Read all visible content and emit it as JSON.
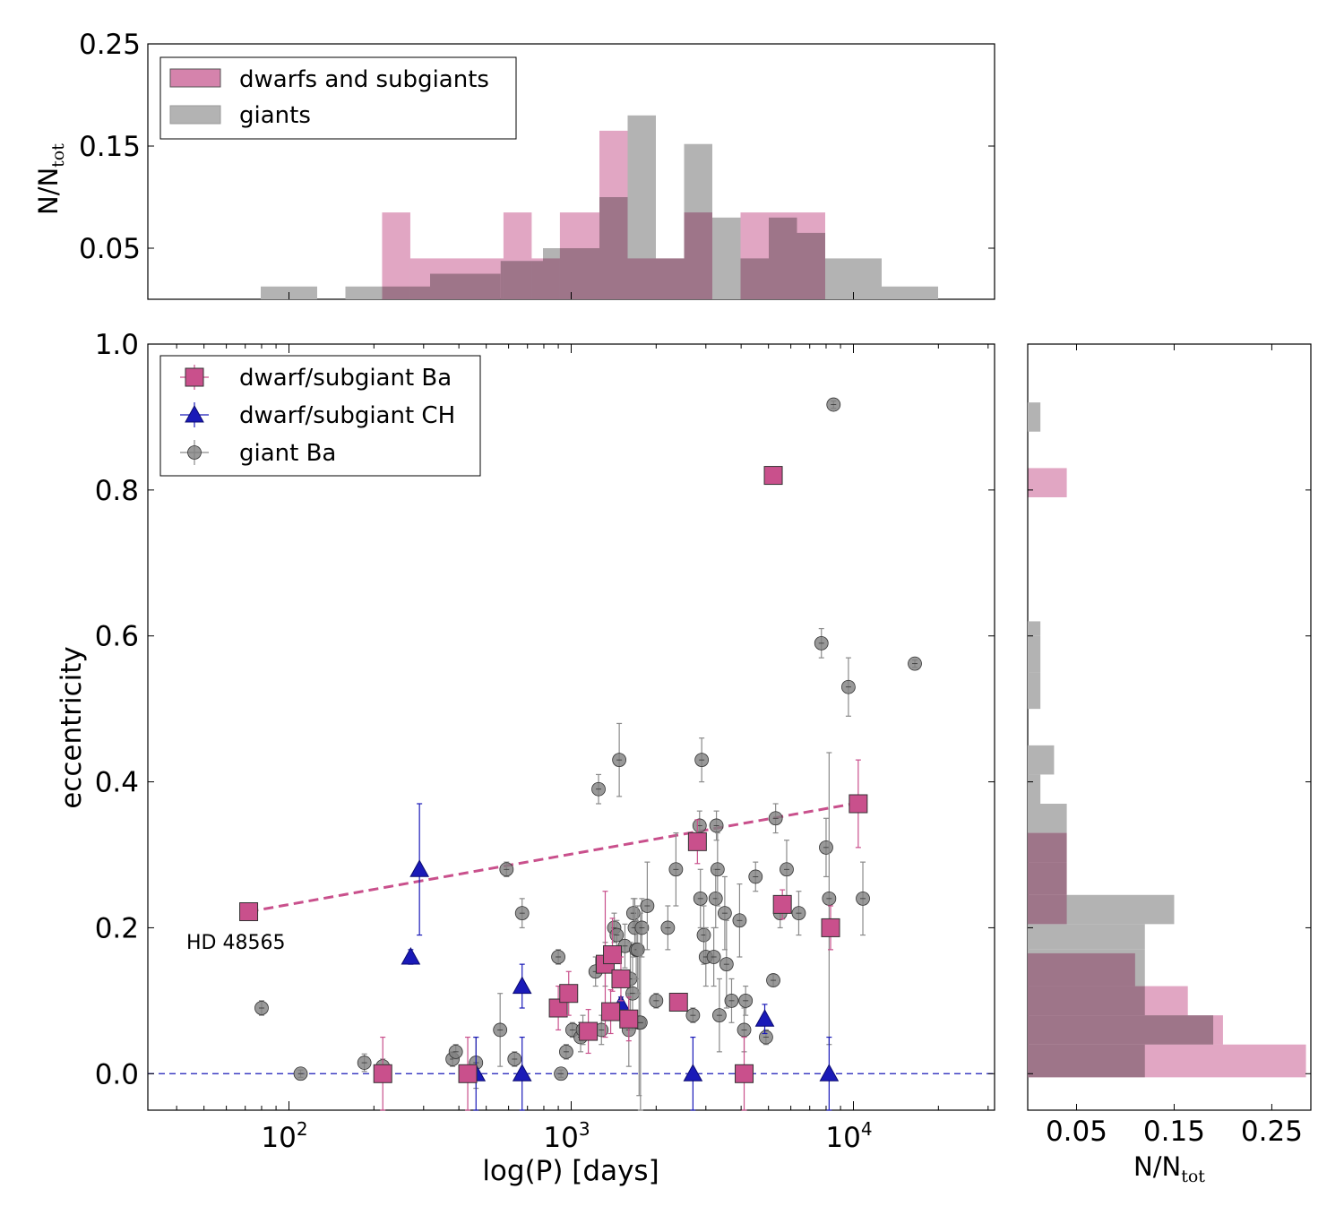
{
  "chart_data": [
    {
      "id": "top_hist",
      "type": "bar",
      "title": "",
      "ylabel_main": "N/N",
      "ylabel_sub": "tot",
      "ylim": [
        0,
        0.25
      ],
      "xlim_log10": [
        1.5,
        4.5
      ],
      "yticks": [
        0.05,
        0.15,
        0.25
      ],
      "ytick_labels": [
        "0.05",
        "0.15",
        "0.25"
      ],
      "legend": {
        "placement": "top-left",
        "entries": [
          {
            "label": "dwarfs and subgiants",
            "color": "#d583ac"
          },
          {
            "label": "giants",
            "color": "#b3b3b3"
          }
        ]
      },
      "series": [
        {
          "name": "giants",
          "color": "#b3b3b3",
          "bins": [
            [
              1.9,
              2.0,
              0.0125
            ],
            [
              2.0,
              2.1,
              0.0125
            ],
            [
              2.2,
              2.33,
              0.0125
            ],
            [
              2.33,
              2.5,
              0.0125
            ],
            [
              2.5,
              2.75,
              0.025
            ],
            [
              2.75,
              2.9,
              0.0375
            ],
            [
              2.9,
              3.1,
              0.05
            ],
            [
              3.1,
              3.2,
              0.1
            ],
            [
              3.2,
              3.3,
              0.18
            ],
            [
              3.3,
              3.4,
              0.04
            ],
            [
              3.4,
              3.5,
              0.152
            ],
            [
              3.5,
              3.6,
              0.08
            ],
            [
              3.6,
              3.7,
              0.04
            ],
            [
              3.7,
              3.8,
              0.08
            ],
            [
              3.8,
              3.9,
              0.065
            ],
            [
              3.9,
              4.0,
              0.04
            ],
            [
              4.0,
              4.1,
              0.04
            ],
            [
              4.1,
              4.3,
              0.0125
            ]
          ]
        },
        {
          "name": "dwarfs and subgiants",
          "color": "#d583ac",
          "bins": [
            [
              2.33,
              2.43,
              0.085
            ],
            [
              2.43,
              2.76,
              0.04
            ],
            [
              2.76,
              2.86,
              0.085
            ],
            [
              2.86,
              2.96,
              0.04
            ],
            [
              2.96,
              3.1,
              0.085
            ],
            [
              3.1,
              3.2,
              0.165
            ],
            [
              3.2,
              3.3,
              0.04
            ],
            [
              3.3,
              3.4,
              0.04
            ],
            [
              3.4,
              3.5,
              0.085
            ],
            [
              3.5,
              3.6,
              0.0
            ],
            [
              3.6,
              3.9,
              0.085
            ]
          ]
        }
      ]
    },
    {
      "id": "scatter",
      "type": "scatter",
      "xlabel": "log(P) [days]",
      "ylabel": "eccentricity",
      "xscale": "log",
      "xlim_log10": [
        1.5,
        4.5
      ],
      "ylim": [
        -0.05,
        1.0
      ],
      "yticks": [
        0.0,
        0.2,
        0.4,
        0.6,
        0.8,
        1.0
      ],
      "ytick_labels": [
        "0.0",
        "0.2",
        "0.4",
        "0.6",
        "0.8",
        "1.0"
      ],
      "xticks_log10": [
        2,
        3,
        4
      ],
      "xtick_base": "10",
      "xtick_exponents": [
        "2",
        "3",
        "4"
      ],
      "legend": {
        "placement": "top-left",
        "entries": [
          {
            "label": "dwarf/subgiant Ba",
            "color": "#c9508c",
            "marker": "square"
          },
          {
            "label": "dwarf/subgiant CH",
            "color": "#1a1ab8",
            "marker": "triangle"
          },
          {
            "label": "giant Ba",
            "color": "#7f7f7f",
            "marker": "circle"
          }
        ]
      },
      "annotation": {
        "text": "HD 48565",
        "color": "#c9508c"
      },
      "zero_line": {
        "y": 0.0,
        "color": "#1a1ab8",
        "style": "dashed"
      },
      "trend_line": {
        "x": [
          72,
          10000
        ],
        "y": [
          0.222,
          0.37
        ],
        "color": "#c9508c",
        "style": "dashed"
      },
      "series": [
        {
          "name": "giant Ba",
          "marker": "circle",
          "color": "#7f7f7f",
          "points": [
            [
              80,
              0.09,
              0.01
            ],
            [
              110,
              0.0,
              0.005
            ],
            [
              185,
              0.015,
              0.012
            ],
            [
              215,
              0.01,
              0.01
            ],
            [
              380,
              0.02,
              0.01
            ],
            [
              390,
              0.03,
              0.01
            ],
            [
              460,
              0.015,
              0.035
            ],
            [
              560,
              0.06,
              0.05
            ],
            [
              590,
              0.28,
              0.01
            ],
            [
              630,
              0.02,
              0.01
            ],
            [
              670,
              0.22,
              0.02
            ],
            [
              900,
              0.16,
              0.01
            ],
            [
              920,
              0.0,
              0.005
            ],
            [
              960,
              0.03,
              0.01
            ],
            [
              1010,
              0.06,
              0.01
            ],
            [
              1080,
              0.05,
              0.02
            ],
            [
              1100,
              0.06,
              0.02
            ],
            [
              1220,
              0.14,
              0.02
            ],
            [
              1250,
              0.39,
              0.02
            ],
            [
              1280,
              0.06,
              0.02
            ],
            [
              1320,
              0.15,
              0.03
            ],
            [
              1420,
              0.2,
              0.02
            ],
            [
              1450,
              0.19,
              0.02
            ],
            [
              1480,
              0.43,
              0.05
            ],
            [
              1550,
              0.175,
              0.03
            ],
            [
              1600,
              0.06,
              0.05
            ],
            [
              1620,
              0.13,
              0.05
            ],
            [
              1650,
              0.11,
              0.05
            ],
            [
              1660,
              0.22,
              0.02
            ],
            [
              1680,
              0.2,
              0.04
            ],
            [
              1700,
              0.17,
              0.04
            ],
            [
              1720,
              0.17,
              0.06
            ],
            [
              1740,
              0.07,
              0.1
            ],
            [
              1760,
              0.07,
              0.15
            ],
            [
              1780,
              0.2,
              0.04
            ],
            [
              1860,
              0.23,
              0.06
            ],
            [
              2000,
              0.1,
              0.01
            ],
            [
              2200,
              0.2,
              0.03
            ],
            [
              2350,
              0.28,
              0.05
            ],
            [
              2700,
              0.08,
              0.01
            ],
            [
              2850,
              0.34,
              0.02
            ],
            [
              2870,
              0.24,
              0.04
            ],
            [
              2900,
              0.43,
              0.03
            ],
            [
              2950,
              0.19,
              0.04
            ],
            [
              3000,
              0.16,
              0.04
            ],
            [
              3200,
              0.16,
              0.04
            ],
            [
              3250,
              0.24,
              0.04
            ],
            [
              3270,
              0.34,
              0.02
            ],
            [
              3300,
              0.28,
              0.05
            ],
            [
              3350,
              0.08,
              0.05
            ],
            [
              3500,
              0.22,
              0.05
            ],
            [
              3550,
              0.15,
              0.06
            ],
            [
              3700,
              0.1,
              0.03
            ],
            [
              3950,
              0.21,
              0.05
            ],
            [
              4100,
              0.06,
              0.03
            ],
            [
              4150,
              0.1,
              0.02
            ],
            [
              4500,
              0.27,
              0.02
            ],
            [
              4900,
              0.05,
              0.01
            ],
            [
              5200,
              0.128,
              0.008
            ],
            [
              5300,
              0.35,
              0.02
            ],
            [
              5500,
              0.22,
              0.02
            ],
            [
              5800,
              0.28,
              0.04
            ],
            [
              6400,
              0.22,
              0.03
            ],
            [
              7700,
              0.59,
              0.02
            ],
            [
              8000,
              0.31,
              0.04
            ],
            [
              8200,
              0.24,
              0.2
            ],
            [
              8500,
              0.917,
              0.005
            ],
            [
              9600,
              0.53,
              0.04
            ],
            [
              10800,
              0.24,
              0.05
            ],
            [
              16500,
              0.562,
              0.005
            ]
          ]
        },
        {
          "name": "dwarf/subgiant CH",
          "marker": "triangle",
          "color": "#1a1ab8",
          "points": [
            [
              270,
              0.16,
              0.01
            ],
            [
              290,
              0.28,
              0.09
            ],
            [
              460,
              0.0,
              0.05
            ],
            [
              670,
              0.12,
              0.03
            ],
            [
              670,
              0.0,
              0.05
            ],
            [
              1500,
              0.095,
              0.01
            ],
            [
              2700,
              0.0,
              0.05
            ],
            [
              4850,
              0.075,
              0.02
            ],
            [
              8200,
              0.0,
              0.05
            ]
          ]
        },
        {
          "name": "dwarf/subgiant Ba",
          "marker": "square",
          "color": "#c9508c",
          "points": [
            [
              72,
              0.222,
              0.0
            ],
            [
              215,
              0.0,
              0.05
            ],
            [
              430,
              0.0,
              0.05
            ],
            [
              900,
              0.09,
              0.03
            ],
            [
              980,
              0.11,
              0.03
            ],
            [
              1150,
              0.058,
              0.03
            ],
            [
              1320,
              0.15,
              0.1
            ],
            [
              1380,
              0.085,
              0.03
            ],
            [
              1400,
              0.163,
              0.05
            ],
            [
              1500,
              0.13,
              0.03
            ],
            [
              1600,
              0.075,
              0.03
            ],
            [
              2400,
              0.098,
              0.01
            ],
            [
              2800,
              0.318,
              0.03
            ],
            [
              4100,
              0.0,
              0.05
            ],
            [
              5200,
              0.82,
              0.005
            ],
            [
              5600,
              0.232,
              0.02
            ],
            [
              8300,
              0.2,
              0.03
            ],
            [
              10400,
              0.37,
              0.06
            ]
          ]
        }
      ]
    },
    {
      "id": "side_hist",
      "type": "bar",
      "orientation": "horizontal",
      "xlabel_main": "N/N",
      "xlabel_sub": "tot",
      "xlim": [
        0,
        0.29
      ],
      "ylim": [
        -0.05,
        1.0
      ],
      "xticks": [
        0.05,
        0.15,
        0.25
      ],
      "xtick_labels": [
        "0.05",
        "0.15",
        "0.25"
      ],
      "series": [
        {
          "name": "giants",
          "color": "#b3b3b3",
          "bins": [
            [
              -0.005,
              0.04,
              0.12
            ],
            [
              0.04,
              0.08,
              0.19
            ],
            [
              0.08,
              0.12,
              0.12
            ],
            [
              0.12,
              0.17,
              0.12
            ],
            [
              0.17,
              0.205,
              0.12
            ],
            [
              0.205,
              0.245,
              0.15
            ],
            [
              0.245,
              0.29,
              0.04
            ],
            [
              0.29,
              0.33,
              0.04
            ],
            [
              0.33,
              0.37,
              0.04
            ],
            [
              0.37,
              0.41,
              0.013
            ],
            [
              0.41,
              0.45,
              0.027
            ],
            [
              0.5,
              0.55,
              0.013
            ],
            [
              0.55,
              0.6,
              0.013
            ],
            [
              0.6,
              0.62,
              0.013
            ],
            [
              0.88,
              0.92,
              0.013
            ]
          ]
        },
        {
          "name": "dwarfs and subgiants",
          "color": "#d583ac",
          "bins": [
            [
              -0.005,
              0.04,
              0.285
            ],
            [
              0.04,
              0.08,
              0.2
            ],
            [
              0.08,
              0.12,
              0.164
            ],
            [
              0.12,
              0.165,
              0.11
            ],
            [
              0.165,
              0.205,
              0.0
            ],
            [
              0.205,
              0.245,
              0.04
            ],
            [
              0.245,
              0.29,
              0.04
            ],
            [
              0.29,
              0.33,
              0.04
            ],
            [
              0.79,
              0.83,
              0.04
            ]
          ]
        }
      ]
    }
  ]
}
